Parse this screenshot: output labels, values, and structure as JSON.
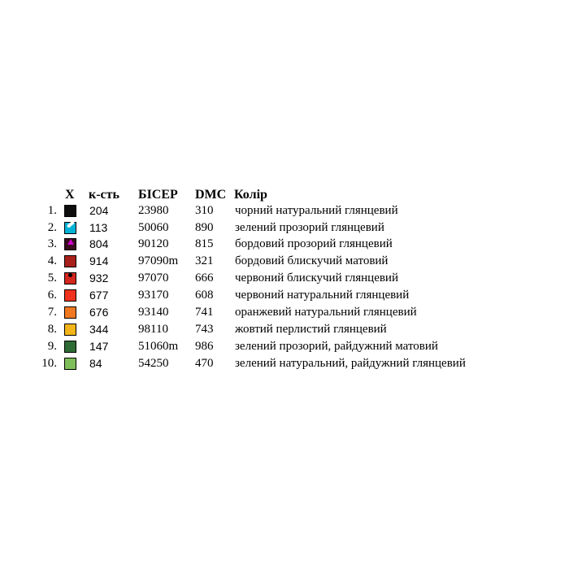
{
  "header": {
    "symbol": "Х",
    "quantity": "к-сть",
    "bead": "БІСЕР",
    "dmc": "DMC",
    "color": "Колір"
  },
  "rows": [
    {
      "num": "1.",
      "swatch": "#0d0d0d",
      "icon": "none",
      "quantity": "204",
      "bead": "23980",
      "dmc": "310",
      "color": "чорний натуральний глянцевий"
    },
    {
      "num": "2.",
      "swatch": "#00b2d6",
      "icon": "slash",
      "quantity": "113",
      "bead": "50060",
      "dmc": "890",
      "color": "зелений прозорий глянцевий"
    },
    {
      "num": "3.",
      "swatch": "#3a0a1e",
      "icon": "triangle",
      "quantity": "804",
      "bead": "90120",
      "dmc": "815",
      "color": "бордовий прозорий глянцевий"
    },
    {
      "num": "4.",
      "swatch": "#a8201c",
      "icon": "none",
      "quantity": "914",
      "bead": "97090m",
      "dmc": "321",
      "color": "бордовий блискучий матовий"
    },
    {
      "num": "5.",
      "swatch": "#d2261e",
      "icon": "dot",
      "quantity": "932",
      "bead": "97070",
      "dmc": "666",
      "color": "червоний блискучий глянцевий"
    },
    {
      "num": "6.",
      "swatch": "#f0321e",
      "icon": "none",
      "quantity": "677",
      "bead": "93170",
      "dmc": "608",
      "color": "червоний натуральний глянцевий"
    },
    {
      "num": "7.",
      "swatch": "#f07820",
      "icon": "none",
      "quantity": "676",
      "bead": "93140",
      "dmc": "741",
      "color": "оранжевий  натуральний глянцевий"
    },
    {
      "num": "8.",
      "swatch": "#f2b418",
      "icon": "none",
      "quantity": "344",
      "bead": "98110",
      "dmc": "743",
      "color": "жовтий перлистий глянцевий"
    },
    {
      "num": "9.",
      "swatch": "#2f6b34",
      "icon": "none",
      "quantity": "147",
      "bead": "51060m",
      "dmc": "986",
      "color": "зелений прозорий, райдужний матовий"
    },
    {
      "num": "10.",
      "swatch": "#7fbf5a",
      "icon": "none",
      "quantity": "84",
      "bead": "54250",
      "dmc": "470",
      "color": "зелений натуральний, райдужний глянцевий"
    }
  ]
}
